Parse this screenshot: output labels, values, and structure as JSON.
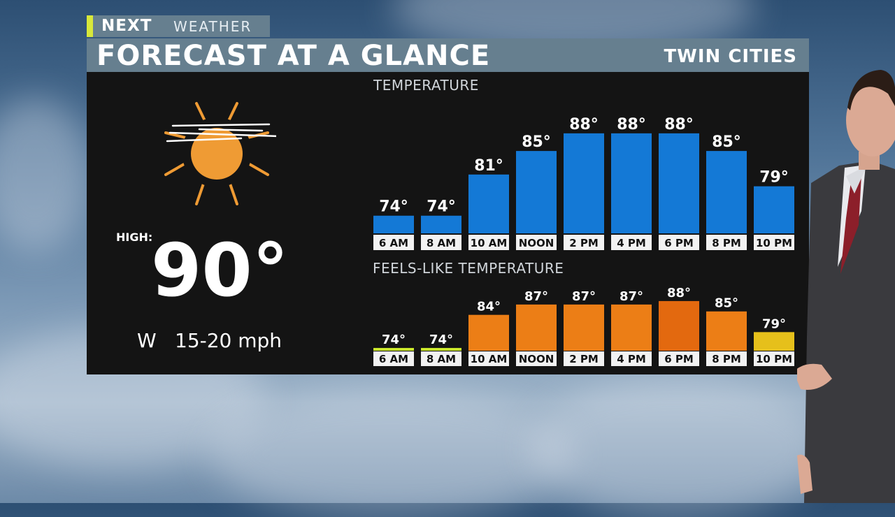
{
  "brand": {
    "next": "NEXT",
    "weather": "WEATHER",
    "accent_color": "#d8e83a"
  },
  "title": "FORECAST AT A GLANCE",
  "location": "TWIN CITIES",
  "summary": {
    "icon": "sun-icon",
    "high_label": "HIGH:",
    "high_value": "90°",
    "wind_direction": "W",
    "wind_speed": "15-20 mph"
  },
  "chart_data": [
    {
      "type": "bar",
      "title": "TEMPERATURE",
      "categories": [
        "6 AM",
        "8 AM",
        "10 AM",
        "NOON",
        "2 PM",
        "4 PM",
        "6 PM",
        "8 PM",
        "10 PM"
      ],
      "values": [
        74,
        74,
        81,
        85,
        88,
        88,
        88,
        85,
        79
      ],
      "value_labels": [
        "74°",
        "74°",
        "81°",
        "85°",
        "88°",
        "88°",
        "88°",
        "85°",
        "79°"
      ],
      "ylim": [
        71,
        90
      ],
      "color": "#1479d6"
    },
    {
      "type": "bar",
      "title": "FEELS-LIKE TEMPERATURE",
      "categories": [
        "6 AM",
        "8 AM",
        "10 AM",
        "NOON",
        "2 PM",
        "4 PM",
        "6 PM",
        "8 PM",
        "10 PM"
      ],
      "values": [
        74,
        74,
        84,
        87,
        87,
        87,
        88,
        85,
        79
      ],
      "value_labels": [
        "74°",
        "74°",
        "84°",
        "87°",
        "87°",
        "87°",
        "88°",
        "85°",
        "79°"
      ],
      "ylim": [
        73.6,
        89.2
      ],
      "colors": [
        "#c9e62a",
        "#c9e62a",
        "#ec7e16",
        "#ec7e16",
        "#ec7e16",
        "#ec7e16",
        "#e3690f",
        "#ec7e16",
        "#e6c01b"
      ]
    }
  ]
}
